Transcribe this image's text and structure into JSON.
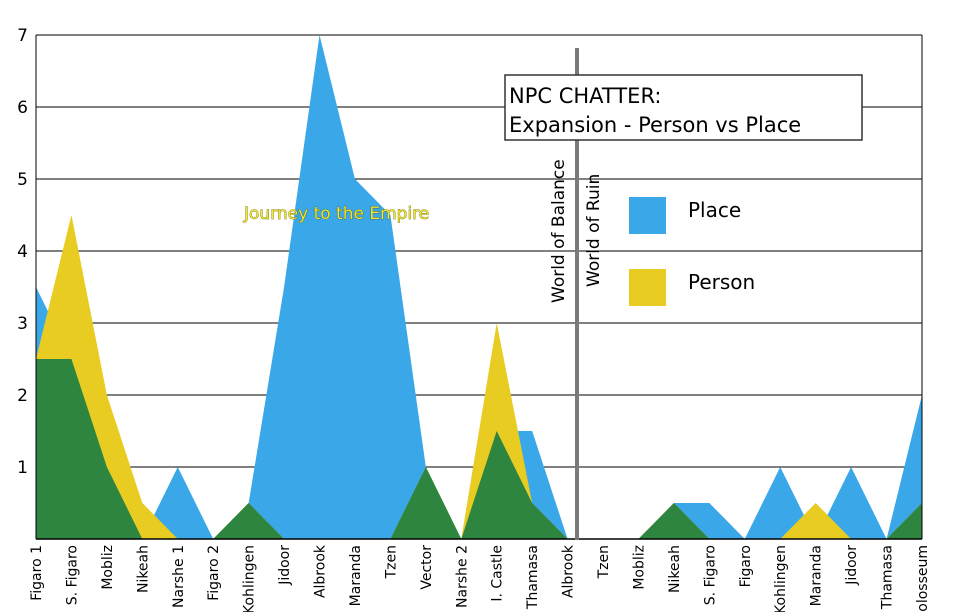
{
  "chart_data": {
    "type": "area",
    "title_line1": "NPC CHATTER:",
    "title_line2": "Expansion - Person vs  Place",
    "ylim": [
      0,
      7
    ],
    "yticks": [
      "1",
      "2",
      "3",
      "4",
      "5",
      "6",
      "7"
    ],
    "grid": "horizontal",
    "legend_position": "right, below title",
    "categories": [
      "Figaro 1",
      "S. Figaro",
      "Mobliz",
      "Nikeah",
      "Narshe 1",
      "Figaro 2",
      "Kohlingen",
      "Jidoor",
      "Albrook",
      "Maranda",
      "Tzen",
      "Vector",
      "Narshe 2",
      "I. Castle",
      "Thamasa",
      "Albrook",
      "Tzen",
      "Mobliz",
      "Nikeah",
      "S. Figaro",
      "Figaro",
      "Kohlingen",
      "Maranda",
      "Jidoor",
      "Thamasa",
      "Colosseum"
    ],
    "series": [
      {
        "name": "Place",
        "color": "#3aa8e8",
        "values": [
          3.5,
          2.5,
          1,
          0,
          1,
          0,
          0.5,
          3.5,
          7,
          5,
          4.5,
          1,
          0,
          1.5,
          1.5,
          0,
          0,
          0,
          0.5,
          0.5,
          0,
          1,
          0,
          1,
          0,
          2
        ]
      },
      {
        "name": "Person",
        "color": "#e8cc22",
        "values": [
          2.5,
          4.5,
          2,
          0.5,
          0,
          0,
          0.5,
          0,
          0,
          0,
          0,
          1,
          0,
          3,
          0.5,
          0,
          0,
          0,
          0.5,
          0,
          0,
          0,
          0.5,
          0,
          0,
          0.5
        ]
      }
    ],
    "overlap_color": "#2e8540",
    "divider_labels": [
      "World of Balance",
      "World of Ruin"
    ],
    "annotation": "Journey to the Empire"
  }
}
